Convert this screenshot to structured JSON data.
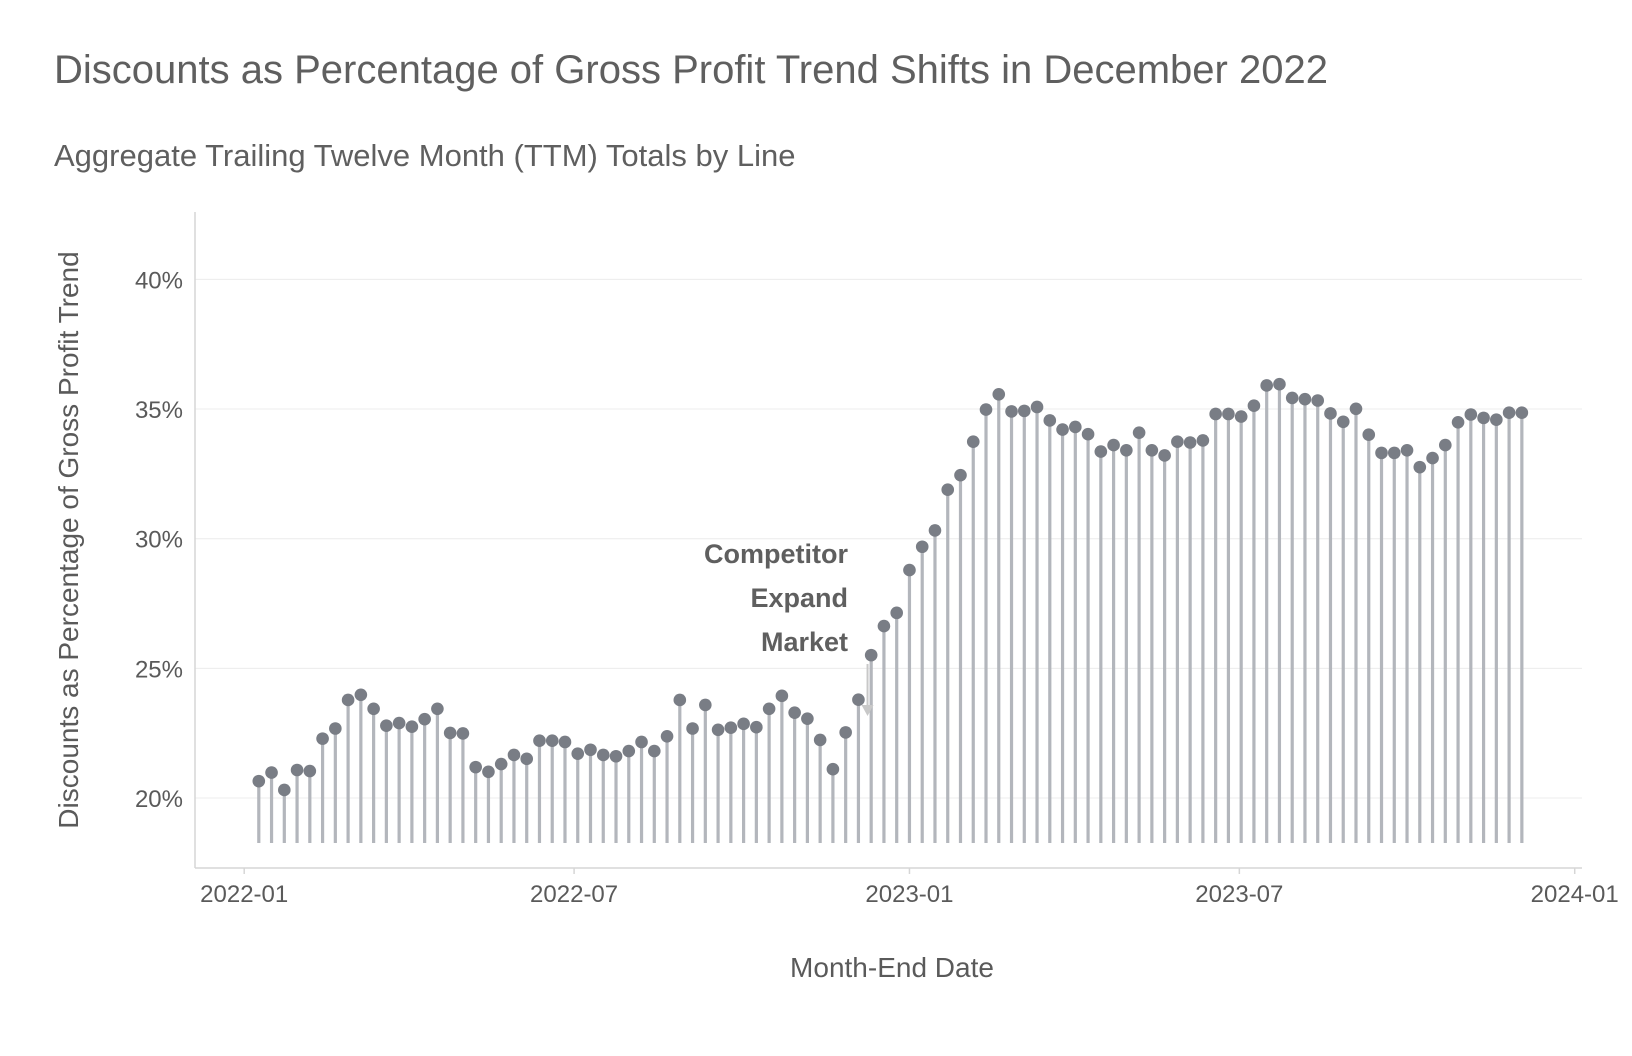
{
  "title": "Discounts as Percentage of Gross Profit Trend Shifts in December 2022",
  "subtitle": "Aggregate Trailing Twelve Month (TTM) Totals by Line",
  "chart_data": {
    "type": "lollipop",
    "xlabel": "Month-End Date",
    "ylabel": "Discounts as Percentage of Gross Profit Trend",
    "x_ticks": [
      "2022-01",
      "2022-07",
      "2023-01",
      "2023-07",
      "2024-01"
    ],
    "y_ticks": [
      "20%",
      "25%",
      "30%",
      "35%",
      "40%"
    ],
    "ylim": [
      0.173,
      0.426
    ],
    "xlim": [
      "2021-12-05",
      "2024-01-05"
    ],
    "grid": "horizontal, light",
    "colors": {
      "stem": "#b3b6bc",
      "point": "#797d85",
      "arrow": "#c8c8c8",
      "text": "#5f5f5f"
    },
    "annotation": {
      "lines": [
        "Competitor",
        "Expand",
        "Market"
      ],
      "date": "2022-12-09"
    },
    "x": [
      "2022-01-09",
      "2022-01-16",
      "2022-01-23",
      "2022-01-30",
      "2022-02-06",
      "2022-02-13",
      "2022-02-20",
      "2022-02-27",
      "2022-03-06",
      "2022-03-13",
      "2022-03-20",
      "2022-03-27",
      "2022-04-03",
      "2022-04-10",
      "2022-04-17",
      "2022-04-24",
      "2022-05-01",
      "2022-05-08",
      "2022-05-15",
      "2022-05-22",
      "2022-05-29",
      "2022-06-05",
      "2022-06-12",
      "2022-06-19",
      "2022-06-26",
      "2022-07-03",
      "2022-07-10",
      "2022-07-17",
      "2022-07-24",
      "2022-07-31",
      "2022-08-07",
      "2022-08-14",
      "2022-08-21",
      "2022-08-28",
      "2022-09-04",
      "2022-09-11",
      "2022-09-18",
      "2022-09-25",
      "2022-10-02",
      "2022-10-09",
      "2022-10-16",
      "2022-10-23",
      "2022-10-30",
      "2022-11-06",
      "2022-11-13",
      "2022-11-20",
      "2022-11-27",
      "2022-12-04",
      "2022-12-11",
      "2022-12-18",
      "2022-12-25",
      "2023-01-01",
      "2023-01-08",
      "2023-01-15",
      "2023-01-22",
      "2023-01-29",
      "2023-02-05",
      "2023-02-12",
      "2023-02-19",
      "2023-02-26",
      "2023-03-05",
      "2023-03-12",
      "2023-03-19",
      "2023-03-26",
      "2023-04-02",
      "2023-04-09",
      "2023-04-16",
      "2023-04-23",
      "2023-04-30",
      "2023-05-07",
      "2023-05-14",
      "2023-05-21",
      "2023-05-28",
      "2023-06-04",
      "2023-06-11",
      "2023-06-18",
      "2023-06-25",
      "2023-07-02",
      "2023-07-09",
      "2023-07-16",
      "2023-07-23",
      "2023-07-30",
      "2023-08-06",
      "2023-08-13",
      "2023-08-20",
      "2023-08-27",
      "2023-09-03",
      "2023-09-10",
      "2023-09-17",
      "2023-09-24",
      "2023-10-01",
      "2023-10-08",
      "2023-10-15",
      "2023-10-22",
      "2023-10-29",
      "2023-11-05",
      "2023-11-12",
      "2023-11-19",
      "2023-11-26",
      "2023-12-03"
    ],
    "values": [
      0.2065,
      0.2098,
      0.2031,
      0.2108,
      0.2104,
      0.2229,
      0.2268,
      0.2378,
      0.2398,
      0.2344,
      0.2279,
      0.2289,
      0.2275,
      0.2304,
      0.2344,
      0.2251,
      0.2249,
      0.2119,
      0.2101,
      0.2131,
      0.2166,
      0.2151,
      0.2221,
      0.2221,
      0.2216,
      0.2171,
      0.2186,
      0.2166,
      0.2161,
      0.2181,
      0.2216,
      0.2181,
      0.2238,
      0.2378,
      0.2268,
      0.2359,
      0.2263,
      0.2271,
      0.2286,
      0.2273,
      0.2344,
      0.2394,
      0.2329,
      0.2306,
      0.2224,
      0.2111,
      0.2253,
      0.2379,
      0.2551,
      0.2663,
      0.2714,
      0.2879,
      0.2969,
      0.3032,
      0.3189,
      0.3245,
      0.3374,
      0.3498,
      0.3557,
      0.3491,
      0.3493,
      0.3508,
      0.3456,
      0.3421,
      0.3431,
      0.3403,
      0.3336,
      0.3361,
      0.3341,
      0.3409,
      0.3341,
      0.3321,
      0.3374,
      0.3371,
      0.3379,
      0.3481,
      0.3481,
      0.3471,
      0.3513,
      0.3591,
      0.3596,
      0.3543,
      0.3538,
      0.3533,
      0.3483,
      0.3451,
      0.3501,
      0.3401,
      0.3331,
      0.3331,
      0.3341,
      0.3276,
      0.3311,
      0.3361,
      0.3449,
      0.3479,
      0.3466,
      0.3459,
      0.3486,
      0.3486
    ]
  }
}
